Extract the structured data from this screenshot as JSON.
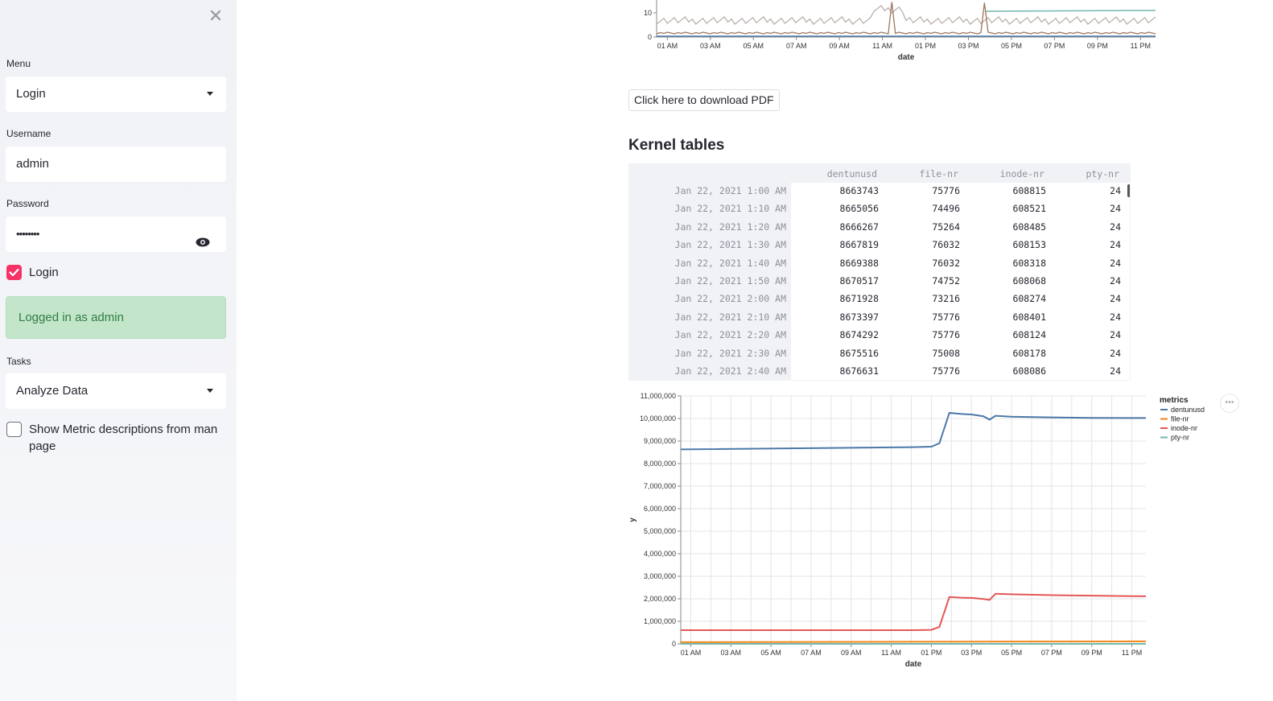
{
  "sidebar": {
    "close_icon": "close-icon",
    "menu_label": "Menu",
    "menu_value": "Login",
    "username_label": "Username",
    "username_value": "admin",
    "password_label": "Password",
    "password_value": "••••••••",
    "login_checkbox_label": "Login",
    "login_checked": true,
    "success_message": "Logged in as admin",
    "tasks_label": "Tasks",
    "tasks_value": "Analyze Data",
    "show_metric_label": "Show Metric descriptions from man page",
    "show_metric_checked": false
  },
  "main": {
    "download_button": "Click here to download PDF",
    "kernel_heading": "Kernel tables",
    "table": {
      "columns": [
        "dentunusd",
        "file-nr",
        "inode-nr",
        "pty-nr"
      ],
      "rows": [
        {
          "date": "Jan 22, 2021 1:00 AM",
          "values": [
            "8663743",
            "75776",
            "608815",
            "24"
          ]
        },
        {
          "date": "Jan 22, 2021 1:10 AM",
          "values": [
            "8665056",
            "74496",
            "608521",
            "24"
          ]
        },
        {
          "date": "Jan 22, 2021 1:20 AM",
          "values": [
            "8666267",
            "75264",
            "608485",
            "24"
          ]
        },
        {
          "date": "Jan 22, 2021 1:30 AM",
          "values": [
            "8667819",
            "76032",
            "608153",
            "24"
          ]
        },
        {
          "date": "Jan 22, 2021 1:40 AM",
          "values": [
            "8669388",
            "76032",
            "608318",
            "24"
          ]
        },
        {
          "date": "Jan 22, 2021 1:50 AM",
          "values": [
            "8670517",
            "74752",
            "608068",
            "24"
          ]
        },
        {
          "date": "Jan 22, 2021 2:00 AM",
          "values": [
            "8671928",
            "73216",
            "608274",
            "24"
          ]
        },
        {
          "date": "Jan 22, 2021 2:10 AM",
          "values": [
            "8673397",
            "75776",
            "608401",
            "24"
          ]
        },
        {
          "date": "Jan 22, 2021 2:20 AM",
          "values": [
            "8674292",
            "75776",
            "608124",
            "24"
          ]
        },
        {
          "date": "Jan 22, 2021 2:30 AM",
          "values": [
            "8675516",
            "75008",
            "608178",
            "24"
          ]
        },
        {
          "date": "Jan 22, 2021 2:40 AM",
          "values": [
            "8676631",
            "75776",
            "608086",
            "24"
          ]
        }
      ]
    },
    "chart_menu_icon": "ellipsis-icon"
  },
  "chart_data": [
    {
      "type": "line",
      "xlabel": "date",
      "x_ticks": [
        "01 AM",
        "03 AM",
        "05 AM",
        "07 AM",
        "09 AM",
        "11 AM",
        "01 PM",
        "03 PM",
        "05 PM",
        "07 PM",
        "09 PM",
        "11 PM"
      ],
      "y_ticks": [
        "0",
        "10"
      ],
      "partially_visible": true
    },
    {
      "type": "line",
      "xlabel": "date",
      "ylabel": "y",
      "x_range_hours": [
        0.5,
        23.7
      ],
      "x_ticks": [
        "01 AM",
        "03 AM",
        "05 AM",
        "07 AM",
        "09 AM",
        "11 AM",
        "01 PM",
        "03 PM",
        "05 PM",
        "07 PM",
        "09 PM",
        "11 PM"
      ],
      "ylim": [
        0,
        11000000
      ],
      "y_ticks": [
        "0",
        "1,000,000",
        "2,000,000",
        "3,000,000",
        "4,000,000",
        "5,000,000",
        "6,000,000",
        "7,000,000",
        "8,000,000",
        "9,000,000",
        "10,000,000",
        "11,000,000"
      ],
      "grid": true,
      "legend_title": "metrics",
      "legend_position": "right",
      "series": [
        {
          "name": "dentunusd",
          "color": "#4c78a8",
          "x": [
            0.5,
            12.0,
            13.0,
            13.4,
            13.9,
            14.5,
            15.0,
            15.6,
            15.9,
            16.2,
            17.0,
            19.0,
            21.0,
            23.7
          ],
          "y": [
            8630000,
            8730000,
            8750000,
            8900000,
            10250000,
            10200000,
            10180000,
            10100000,
            9950000,
            10120000,
            10080000,
            10050000,
            10030000,
            10020000
          ]
        },
        {
          "name": "file-nr",
          "color": "#f58518",
          "x": [
            0.5,
            23.7
          ],
          "y": [
            75000,
            110000
          ]
        },
        {
          "name": "inode-nr",
          "color": "#e45756",
          "x": [
            0.5,
            12.0,
            13.0,
            13.4,
            13.9,
            14.5,
            15.0,
            15.6,
            15.9,
            16.2,
            17.0,
            19.0,
            21.0,
            23.7
          ],
          "y": [
            608000,
            608000,
            620000,
            750000,
            2080000,
            2050000,
            2040000,
            1990000,
            1950000,
            2220000,
            2200000,
            2160000,
            2140000,
            2110000
          ]
        },
        {
          "name": "pty-nr",
          "color": "#72b7b2",
          "x": [
            0.5,
            23.7
          ],
          "y": [
            24,
            24
          ]
        }
      ]
    }
  ]
}
